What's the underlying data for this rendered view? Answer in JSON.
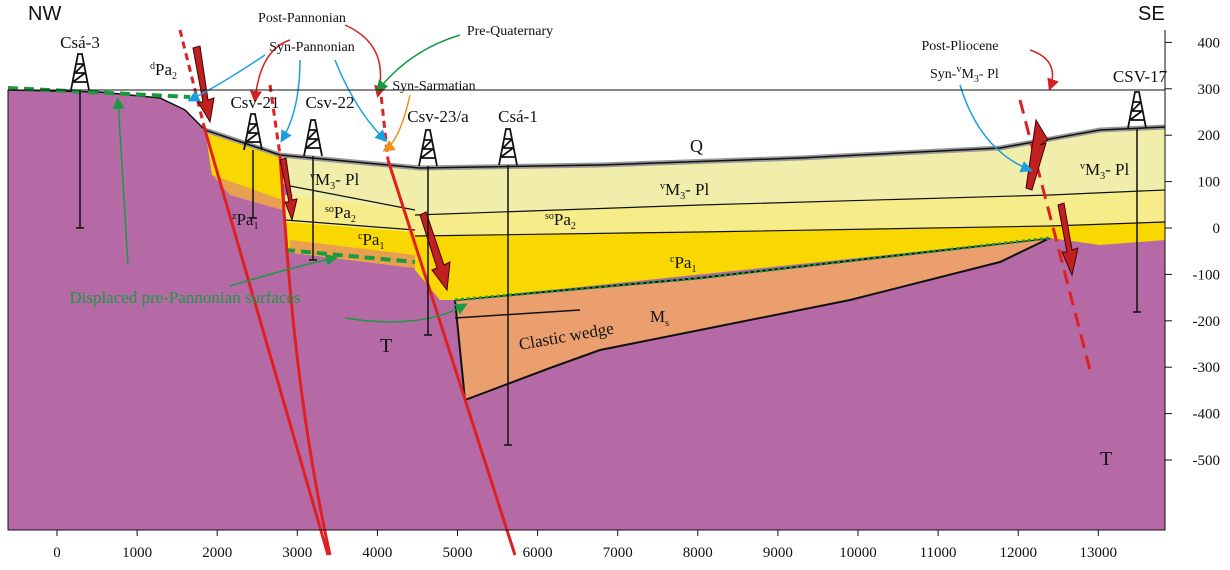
{
  "header": {
    "left": "NW",
    "right": "SE"
  },
  "x_axis": {
    "ticks": [
      0,
      1000,
      2000,
      3000,
      4000,
      5000,
      6000,
      7000,
      8000,
      9000,
      10000,
      11000,
      12000,
      13000
    ]
  },
  "y_axis": {
    "ticks": [
      400,
      300,
      200,
      100,
      0,
      -100,
      -200,
      -300,
      -400,
      -500
    ]
  },
  "wells": [
    "Csá-3",
    "Csv-21",
    "Csv-22",
    "Csv-23/a",
    "Csá-1",
    "CSV-17"
  ],
  "annotations": {
    "post_pannonian": "Post-Pannonian",
    "syn_pannonian": "Syn-Pannonian",
    "pre_quaternary": "Pre-Quaternary",
    "syn_sarmatian": "Syn-Sarmatian",
    "post_pliocene": "Post-Pliocene",
    "syn_m3_pl": {
      "pre": "Syn-",
      "sup": "v",
      "base": "M",
      "sub": "3",
      "post": "- Pl"
    },
    "displaced": "Displaced pre-Pannonian surfaces",
    "clastic_wedge": "Clastic wedge"
  },
  "formations": {
    "q": "Q",
    "dpa2": {
      "sup": "d",
      "base": "Pa",
      "sub": "2"
    },
    "zpa1": {
      "sup": "z",
      "base": "Pa",
      "sub": "1"
    },
    "m3pl_left": {
      "sup": "v",
      "base": "M",
      "sub": "3",
      "post": "- Pl"
    },
    "m3pl_mid": {
      "sup": "v",
      "base": "M",
      "sub": "3",
      "post": "- Pl"
    },
    "m3pl_right": {
      "sup": "v",
      "base": "M",
      "sub": "3",
      "post": "- Pl"
    },
    "sopa2_left": {
      "sup": "so",
      "base": "Pa",
      "sub": "2"
    },
    "sopa2_mid": {
      "sup": "so",
      "base": "Pa",
      "sub": "2"
    },
    "cpa1_left": {
      "sup": "c",
      "base": "Pa",
      "sub": "1"
    },
    "cpa1_mid": {
      "sup": "c",
      "base": "Pa",
      "sub": "1"
    },
    "ms": {
      "base": "M",
      "sub": "s"
    },
    "t_left": "T",
    "t_right": "T"
  }
}
